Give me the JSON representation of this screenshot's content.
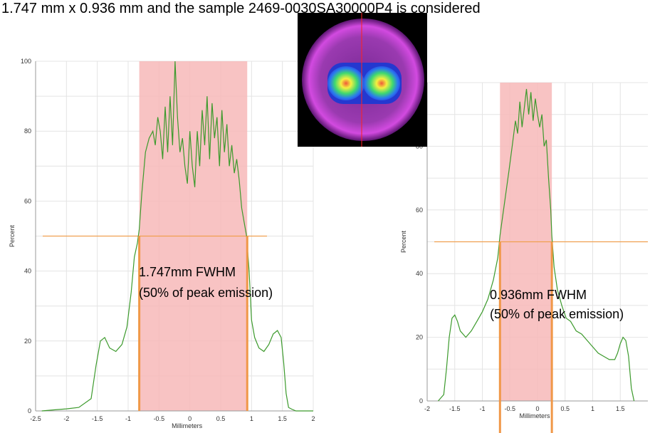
{
  "header_text": "1.747 mm x 0.936 mm and the sample 2469-0030SA30000P4 is considered",
  "colors": {
    "line": "#3c9a2c",
    "band": "#f7b8b8",
    "threshold": "#f0a050",
    "edge": "#f09848",
    "grid": "#e4e4e4",
    "beam_bg": "#000000"
  },
  "beam_image": {
    "style": "false-color beam profile, magenta ring, blue/green/yellow double-lobe core, red crosshair"
  },
  "chart_data": [
    {
      "type": "line",
      "xlabel": "Millimeters",
      "ylabel": "Percent",
      "xlim": [
        -2.5,
        2
      ],
      "ylim": [
        0,
        100
      ],
      "x_ticks": [
        "-2.5",
        "-2",
        "-1.5",
        "-1",
        "-0.5",
        "0",
        "0.5",
        "1",
        "1.5",
        "2"
      ],
      "y_ticks": [
        "0",
        "20",
        "40",
        "60",
        "80",
        "100"
      ],
      "grid": true,
      "band": [
        -0.82,
        0.93
      ],
      "threshold": 50,
      "annotation_line1": "1.747mm FWHM",
      "annotation_line2": "(50% of peak emission)",
      "series": [
        {
          "x": [
            -2.4,
            -2.2,
            -2.0,
            -1.8,
            -1.6,
            -1.52,
            -1.45,
            -1.38,
            -1.3,
            -1.2,
            -1.1,
            -1.02,
            -0.95,
            -0.9,
            -0.85,
            -0.82,
            -0.78,
            -0.72,
            -0.66,
            -0.6,
            -0.56,
            -0.52,
            -0.48,
            -0.44,
            -0.4,
            -0.36,
            -0.32,
            -0.28,
            -0.24,
            -0.2,
            -0.16,
            -0.12,
            -0.08,
            -0.04,
            0.0,
            0.04,
            0.08,
            0.12,
            0.16,
            0.2,
            0.24,
            0.28,
            0.32,
            0.36,
            0.4,
            0.44,
            0.48,
            0.52,
            0.56,
            0.6,
            0.64,
            0.68,
            0.72,
            0.76,
            0.8,
            0.84,
            0.88,
            0.92,
            0.96,
            1.0,
            1.05,
            1.12,
            1.2,
            1.28,
            1.35,
            1.42,
            1.48,
            1.52,
            1.56,
            1.6,
            1.65,
            1.72,
            1.85,
            2.0
          ],
          "y": [
            0,
            0.3,
            0.6,
            1.0,
            3.5,
            13,
            20,
            21,
            18,
            17,
            19,
            24,
            34,
            44,
            48,
            52,
            62,
            74,
            78,
            80,
            76,
            84,
            80,
            72,
            87,
            74,
            90,
            76,
            100,
            84,
            74,
            78,
            70,
            65,
            80,
            70,
            64,
            80,
            70,
            86,
            76,
            90,
            72,
            88,
            78,
            84,
            70,
            86,
            74,
            82,
            70,
            76,
            68,
            72,
            66,
            58,
            54,
            50,
            40,
            26,
            21,
            18,
            17,
            19,
            22,
            23,
            21,
            14,
            5,
            1,
            0.5,
            0,
            0,
            0
          ]
        }
      ]
    },
    {
      "type": "line",
      "xlabel": "Millimeters",
      "ylabel": "Percent",
      "xlim": [
        -2,
        2
      ],
      "ylim": [
        0,
        100
      ],
      "x_ticks": [
        "-2",
        "-1.5",
        "-1",
        "-0.5",
        "0",
        "0.5",
        "1",
        "1.5"
      ],
      "y_ticks": [
        "0",
        "20",
        "40",
        "60",
        "80"
      ],
      "grid": true,
      "band": [
        -0.68,
        0.26
      ],
      "threshold": 50,
      "annotation_line1": "0.936mm FWHM",
      "annotation_line2": "(50% of peak emission)",
      "series": [
        {
          "x": [
            -1.8,
            -1.75,
            -1.7,
            -1.65,
            -1.6,
            -1.55,
            -1.5,
            -1.45,
            -1.4,
            -1.3,
            -1.2,
            -1.1,
            -1.0,
            -0.9,
            -0.8,
            -0.72,
            -0.68,
            -0.6,
            -0.52,
            -0.46,
            -0.4,
            -0.36,
            -0.32,
            -0.28,
            -0.24,
            -0.2,
            -0.16,
            -0.12,
            -0.08,
            -0.04,
            0.0,
            0.04,
            0.08,
            0.12,
            0.16,
            0.2,
            0.24,
            0.26,
            0.3,
            0.36,
            0.44,
            0.52,
            0.6,
            0.7,
            0.8,
            0.9,
            1.0,
            1.1,
            1.2,
            1.3,
            1.4,
            1.45,
            1.5,
            1.55,
            1.6,
            1.65,
            1.7,
            1.75
          ],
          "y": [
            0,
            1,
            2,
            10,
            20,
            26,
            27,
            25,
            22,
            20,
            22,
            25,
            28,
            32,
            38,
            45,
            52,
            62,
            72,
            80,
            88,
            84,
            94,
            86,
            92,
            98,
            90,
            97,
            88,
            95,
            90,
            86,
            90,
            80,
            82,
            70,
            60,
            52,
            42,
            35,
            30,
            26,
            25,
            22,
            21,
            19,
            17,
            15,
            14,
            13,
            13,
            15,
            18,
            20,
            19,
            14,
            4,
            0
          ]
        }
      ]
    }
  ]
}
